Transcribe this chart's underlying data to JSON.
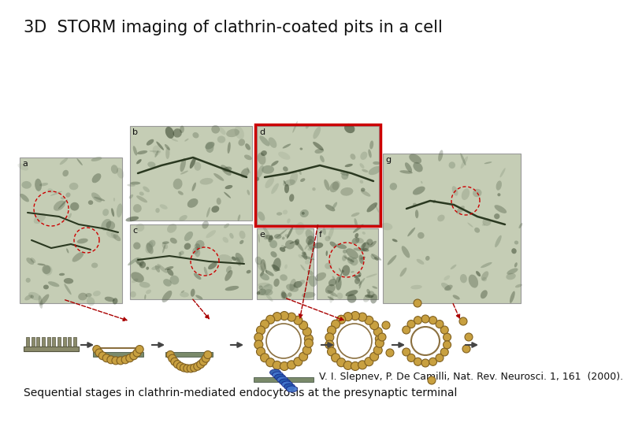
{
  "title": "3D  STORM imaging of clathrin-coated pits in a cell",
  "title_fontsize": 15,
  "citation": "V. I. Slepnev, P. De Camilli, Nat. Rev. Neurosci. 1, 161  (2000).",
  "citation_fontsize": 9,
  "subtitle": "Sequential stages in clathrin-mediated endocytosis at the presynaptic terminal",
  "subtitle_fontsize": 10,
  "background_color": "#ffffff",
  "text_color": "#111111",
  "em_bg": "#c8d0b8",
  "em_dark": "#4a5840",
  "em_mid": "#7a8870",
  "em_light": "#e0e8d8"
}
